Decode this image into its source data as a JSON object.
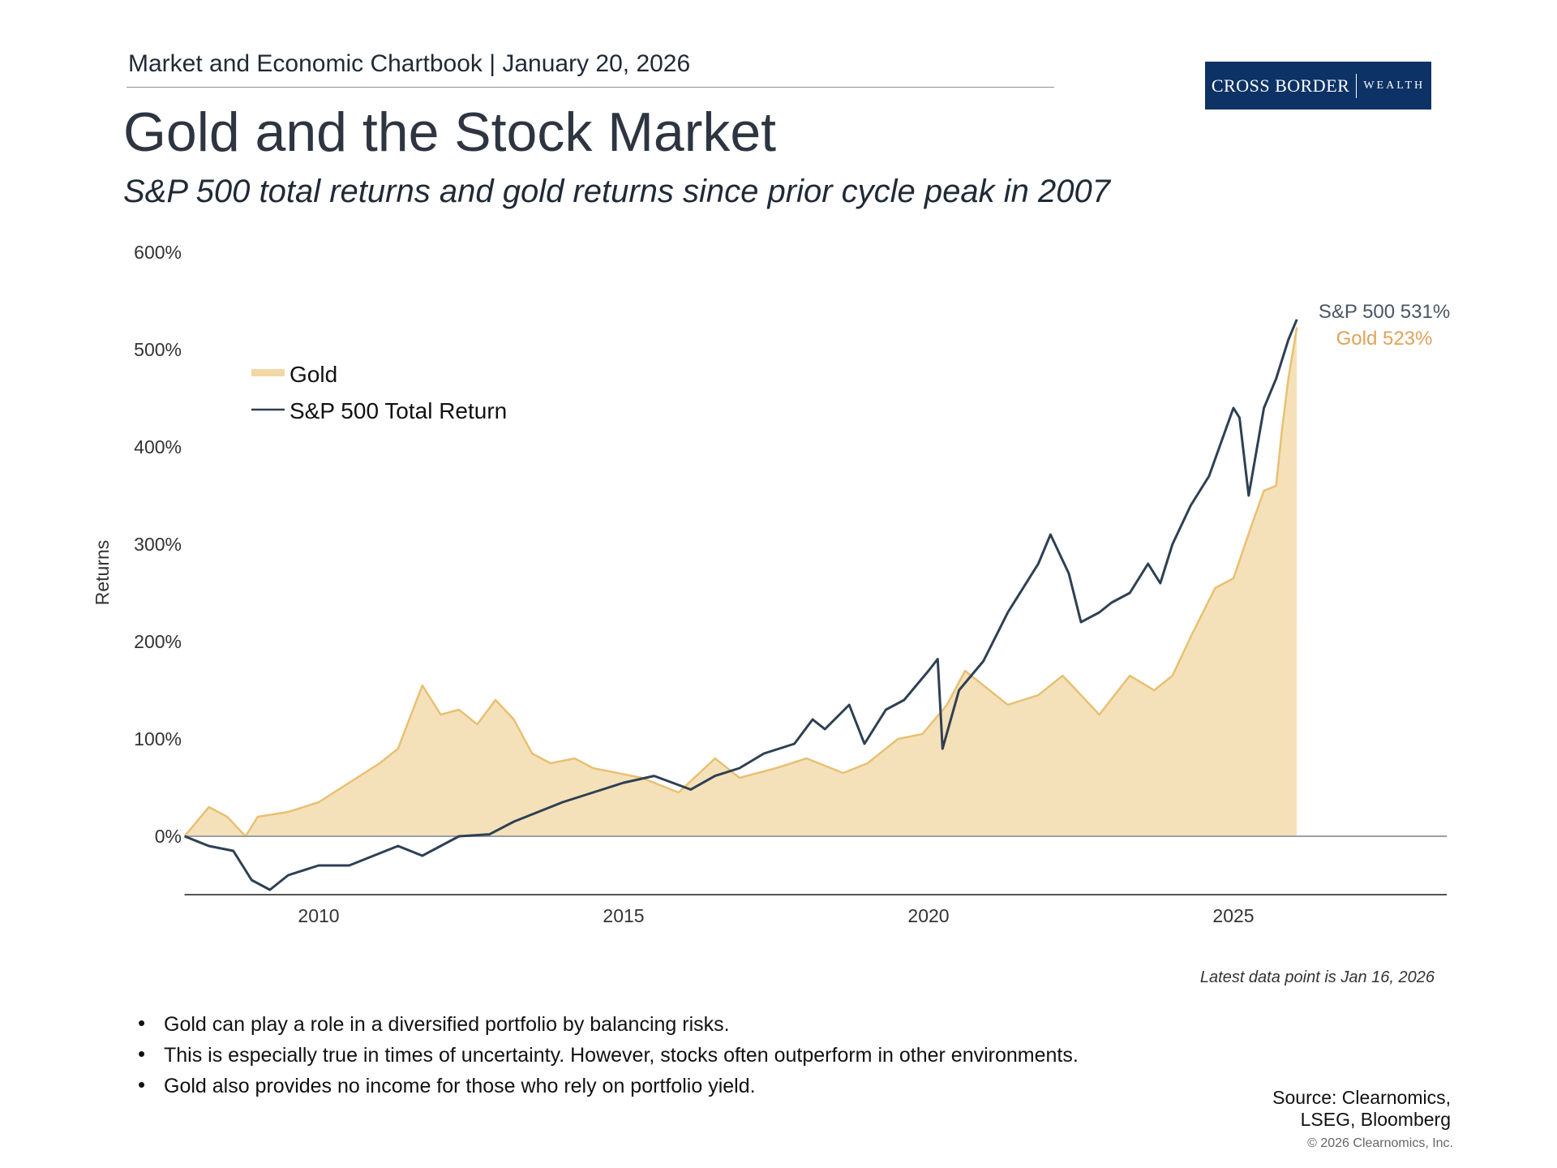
{
  "header": {
    "chartbook": "Market and Economic Chartbook | January 20, 2026"
  },
  "title": "Gold and the Stock Market",
  "subtitle": "S&P 500 total returns and gold returns since prior cycle peak in 2007",
  "logo": {
    "text_left": "CROSS BORDER",
    "text_right": "WEALTH",
    "color": "#0c3266"
  },
  "chart_data": {
    "type": "area",
    "ylabel": "Returns",
    "xlabel": "",
    "ylim": [
      -60,
      600
    ],
    "xlim": [
      2007.8,
      2028.5
    ],
    "yticks": [
      "600%",
      "500%",
      "400%",
      "300%",
      "200%",
      "100%",
      "0%"
    ],
    "ytick_values": [
      600,
      500,
      400,
      300,
      200,
      100,
      0
    ],
    "xticks": [
      "2010",
      "2015",
      "2020",
      "2025"
    ],
    "xtick_values": [
      2010,
      2015,
      2020,
      2025
    ],
    "grid": false,
    "legend_placement": "top-left",
    "series": [
      {
        "name": "Gold",
        "style": "area",
        "color": "#e8c073",
        "fill": "#f5e1b9",
        "end_label": "Gold 523%",
        "points": [
          [
            2007.8,
            0
          ],
          [
            2008.2,
            30
          ],
          [
            2008.5,
            20
          ],
          [
            2008.8,
            0
          ],
          [
            2009.0,
            20
          ],
          [
            2009.5,
            25
          ],
          [
            2010.0,
            35
          ],
          [
            2010.5,
            55
          ],
          [
            2011.0,
            75
          ],
          [
            2011.3,
            90
          ],
          [
            2011.7,
            155
          ],
          [
            2012.0,
            125
          ],
          [
            2012.3,
            130
          ],
          [
            2012.6,
            115
          ],
          [
            2012.9,
            140
          ],
          [
            2013.2,
            120
          ],
          [
            2013.5,
            85
          ],
          [
            2013.8,
            75
          ],
          [
            2014.2,
            80
          ],
          [
            2014.5,
            70
          ],
          [
            2014.9,
            65
          ],
          [
            2015.3,
            60
          ],
          [
            2015.9,
            45
          ],
          [
            2016.5,
            80
          ],
          [
            2016.9,
            60
          ],
          [
            2017.5,
            70
          ],
          [
            2018.0,
            80
          ],
          [
            2018.6,
            65
          ],
          [
            2019.0,
            75
          ],
          [
            2019.5,
            100
          ],
          [
            2019.9,
            105
          ],
          [
            2020.3,
            135
          ],
          [
            2020.6,
            170
          ],
          [
            2021.0,
            150
          ],
          [
            2021.3,
            135
          ],
          [
            2021.8,
            145
          ],
          [
            2022.2,
            165
          ],
          [
            2022.8,
            125
          ],
          [
            2023.3,
            165
          ],
          [
            2023.7,
            150
          ],
          [
            2024.0,
            165
          ],
          [
            2024.3,
            205
          ],
          [
            2024.7,
            255
          ],
          [
            2025.0,
            265
          ],
          [
            2025.3,
            320
          ],
          [
            2025.5,
            355
          ],
          [
            2025.7,
            360
          ],
          [
            2025.8,
            420
          ],
          [
            2025.9,
            470
          ],
          [
            2026.04,
            523
          ]
        ]
      },
      {
        "name": "S&P 500 Total Return",
        "style": "line",
        "color": "#2e4053",
        "end_label": "S&P 500 531%",
        "points": [
          [
            2007.8,
            0
          ],
          [
            2008.2,
            -10
          ],
          [
            2008.6,
            -15
          ],
          [
            2008.9,
            -45
          ],
          [
            2009.2,
            -55
          ],
          [
            2009.5,
            -40
          ],
          [
            2010.0,
            -30
          ],
          [
            2010.5,
            -30
          ],
          [
            2010.9,
            -20
          ],
          [
            2011.3,
            -10
          ],
          [
            2011.7,
            -20
          ],
          [
            2012.0,
            -10
          ],
          [
            2012.3,
            0
          ],
          [
            2012.8,
            2
          ],
          [
            2013.2,
            15
          ],
          [
            2013.6,
            25
          ],
          [
            2014.0,
            35
          ],
          [
            2014.5,
            45
          ],
          [
            2015.0,
            55
          ],
          [
            2015.5,
            62
          ],
          [
            2015.8,
            55
          ],
          [
            2016.1,
            48
          ],
          [
            2016.5,
            62
          ],
          [
            2016.9,
            70
          ],
          [
            2017.3,
            85
          ],
          [
            2017.8,
            95
          ],
          [
            2018.1,
            120
          ],
          [
            2018.3,
            110
          ],
          [
            2018.7,
            135
          ],
          [
            2018.95,
            95
          ],
          [
            2019.3,
            130
          ],
          [
            2019.6,
            140
          ],
          [
            2020.0,
            170
          ],
          [
            2020.15,
            182
          ],
          [
            2020.23,
            90
          ],
          [
            2020.5,
            150
          ],
          [
            2020.9,
            180
          ],
          [
            2021.3,
            230
          ],
          [
            2021.8,
            280
          ],
          [
            2022.0,
            310
          ],
          [
            2022.3,
            270
          ],
          [
            2022.5,
            220
          ],
          [
            2022.8,
            230
          ],
          [
            2023.0,
            240
          ],
          [
            2023.3,
            250
          ],
          [
            2023.6,
            280
          ],
          [
            2023.8,
            260
          ],
          [
            2024.0,
            300
          ],
          [
            2024.3,
            340
          ],
          [
            2024.6,
            370
          ],
          [
            2025.0,
            440
          ],
          [
            2025.1,
            430
          ],
          [
            2025.25,
            350
          ],
          [
            2025.5,
            440
          ],
          [
            2025.7,
            470
          ],
          [
            2025.9,
            510
          ],
          [
            2026.04,
            531
          ]
        ]
      }
    ]
  },
  "note": "Latest data point is Jan 16, 2026",
  "bullets": [
    "Gold can play a role in a diversified portfolio by balancing risks.",
    "This is especially true in times of uncertainty. However, stocks often outperform in other environments.",
    "Gold also provides no income for those who rely on portfolio yield."
  ],
  "source": {
    "line1": "Source: Clearnomics,",
    "line2": "LSEG, Bloomberg"
  },
  "copyright": "© 2026 Clearnomics, Inc."
}
